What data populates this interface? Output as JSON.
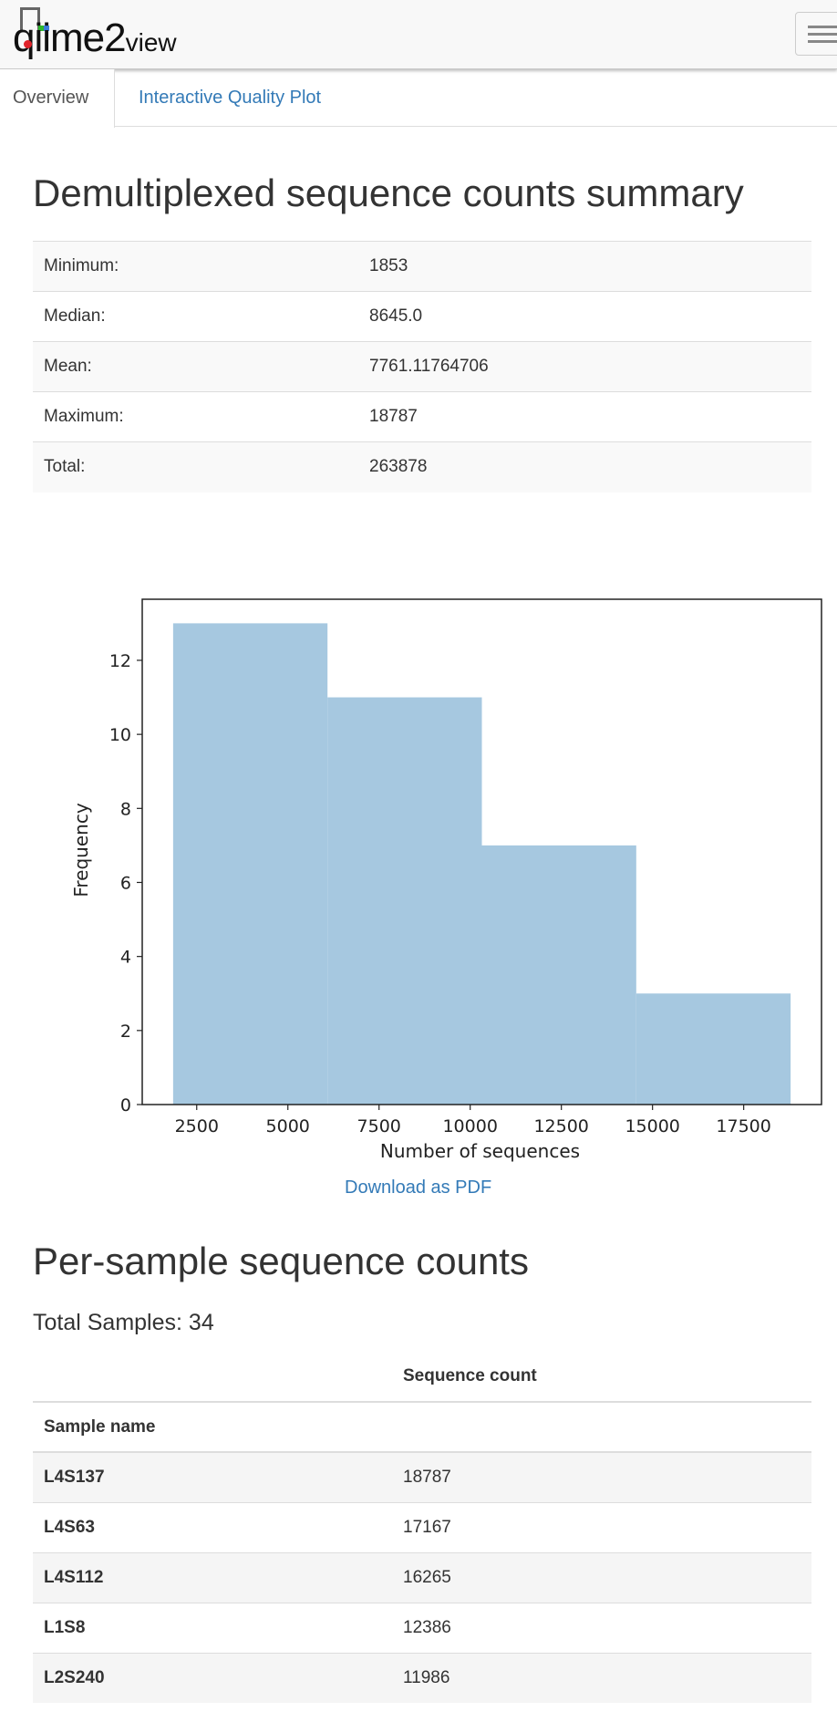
{
  "navbar": {
    "logo_main": "qiime2",
    "logo_suffix": "view"
  },
  "tabs": [
    {
      "label": "Overview"
    },
    {
      "label": "Interactive Quality Plot"
    }
  ],
  "summary": {
    "title": "Demultiplexed sequence counts summary",
    "rows": [
      {
        "label": "Minimum:",
        "value": "1853"
      },
      {
        "label": "Median:",
        "value": "8645.0"
      },
      {
        "label": "Mean:",
        "value": "7761.11764706"
      },
      {
        "label": "Maximum:",
        "value": "18787"
      },
      {
        "label": "Total:",
        "value": "263878"
      }
    ]
  },
  "chart_data": {
    "type": "bar",
    "bins": [
      {
        "start": 1853,
        "end": 6086.5,
        "count": 13
      },
      {
        "start": 6086.5,
        "end": 10320,
        "count": 11
      },
      {
        "start": 10320,
        "end": 14553.5,
        "count": 7
      },
      {
        "start": 14553.5,
        "end": 18787,
        "count": 3
      }
    ],
    "xlabel": "Number of sequences",
    "ylabel": "Frequency",
    "xticks": [
      "2500",
      "5000",
      "7500",
      "10000",
      "12500",
      "15000",
      "17500"
    ],
    "xtick_values": [
      2500,
      5000,
      7500,
      10000,
      12500,
      15000,
      17500
    ],
    "yticks": [
      "0",
      "2",
      "4",
      "6",
      "8",
      "10",
      "12"
    ],
    "ytick_values": [
      0,
      2,
      4,
      6,
      8,
      10,
      12
    ],
    "xlim": [
      1006,
      19634
    ],
    "ylim": [
      0,
      13.65
    ],
    "bar_color": "#a6c8e0",
    "grid": false
  },
  "download": {
    "label": "Download as PDF"
  },
  "per_sample": {
    "title": "Per-sample sequence counts",
    "total_samples": "Total Samples: 34",
    "column_header": "Sequence count",
    "index_header": "Sample name",
    "rows": [
      {
        "name": "L4S137",
        "count": "18787"
      },
      {
        "name": "L4S63",
        "count": "17167"
      },
      {
        "name": "L4S112",
        "count": "16265"
      },
      {
        "name": "L1S8",
        "count": "12386"
      },
      {
        "name": "L2S240",
        "count": "11986"
      }
    ]
  }
}
